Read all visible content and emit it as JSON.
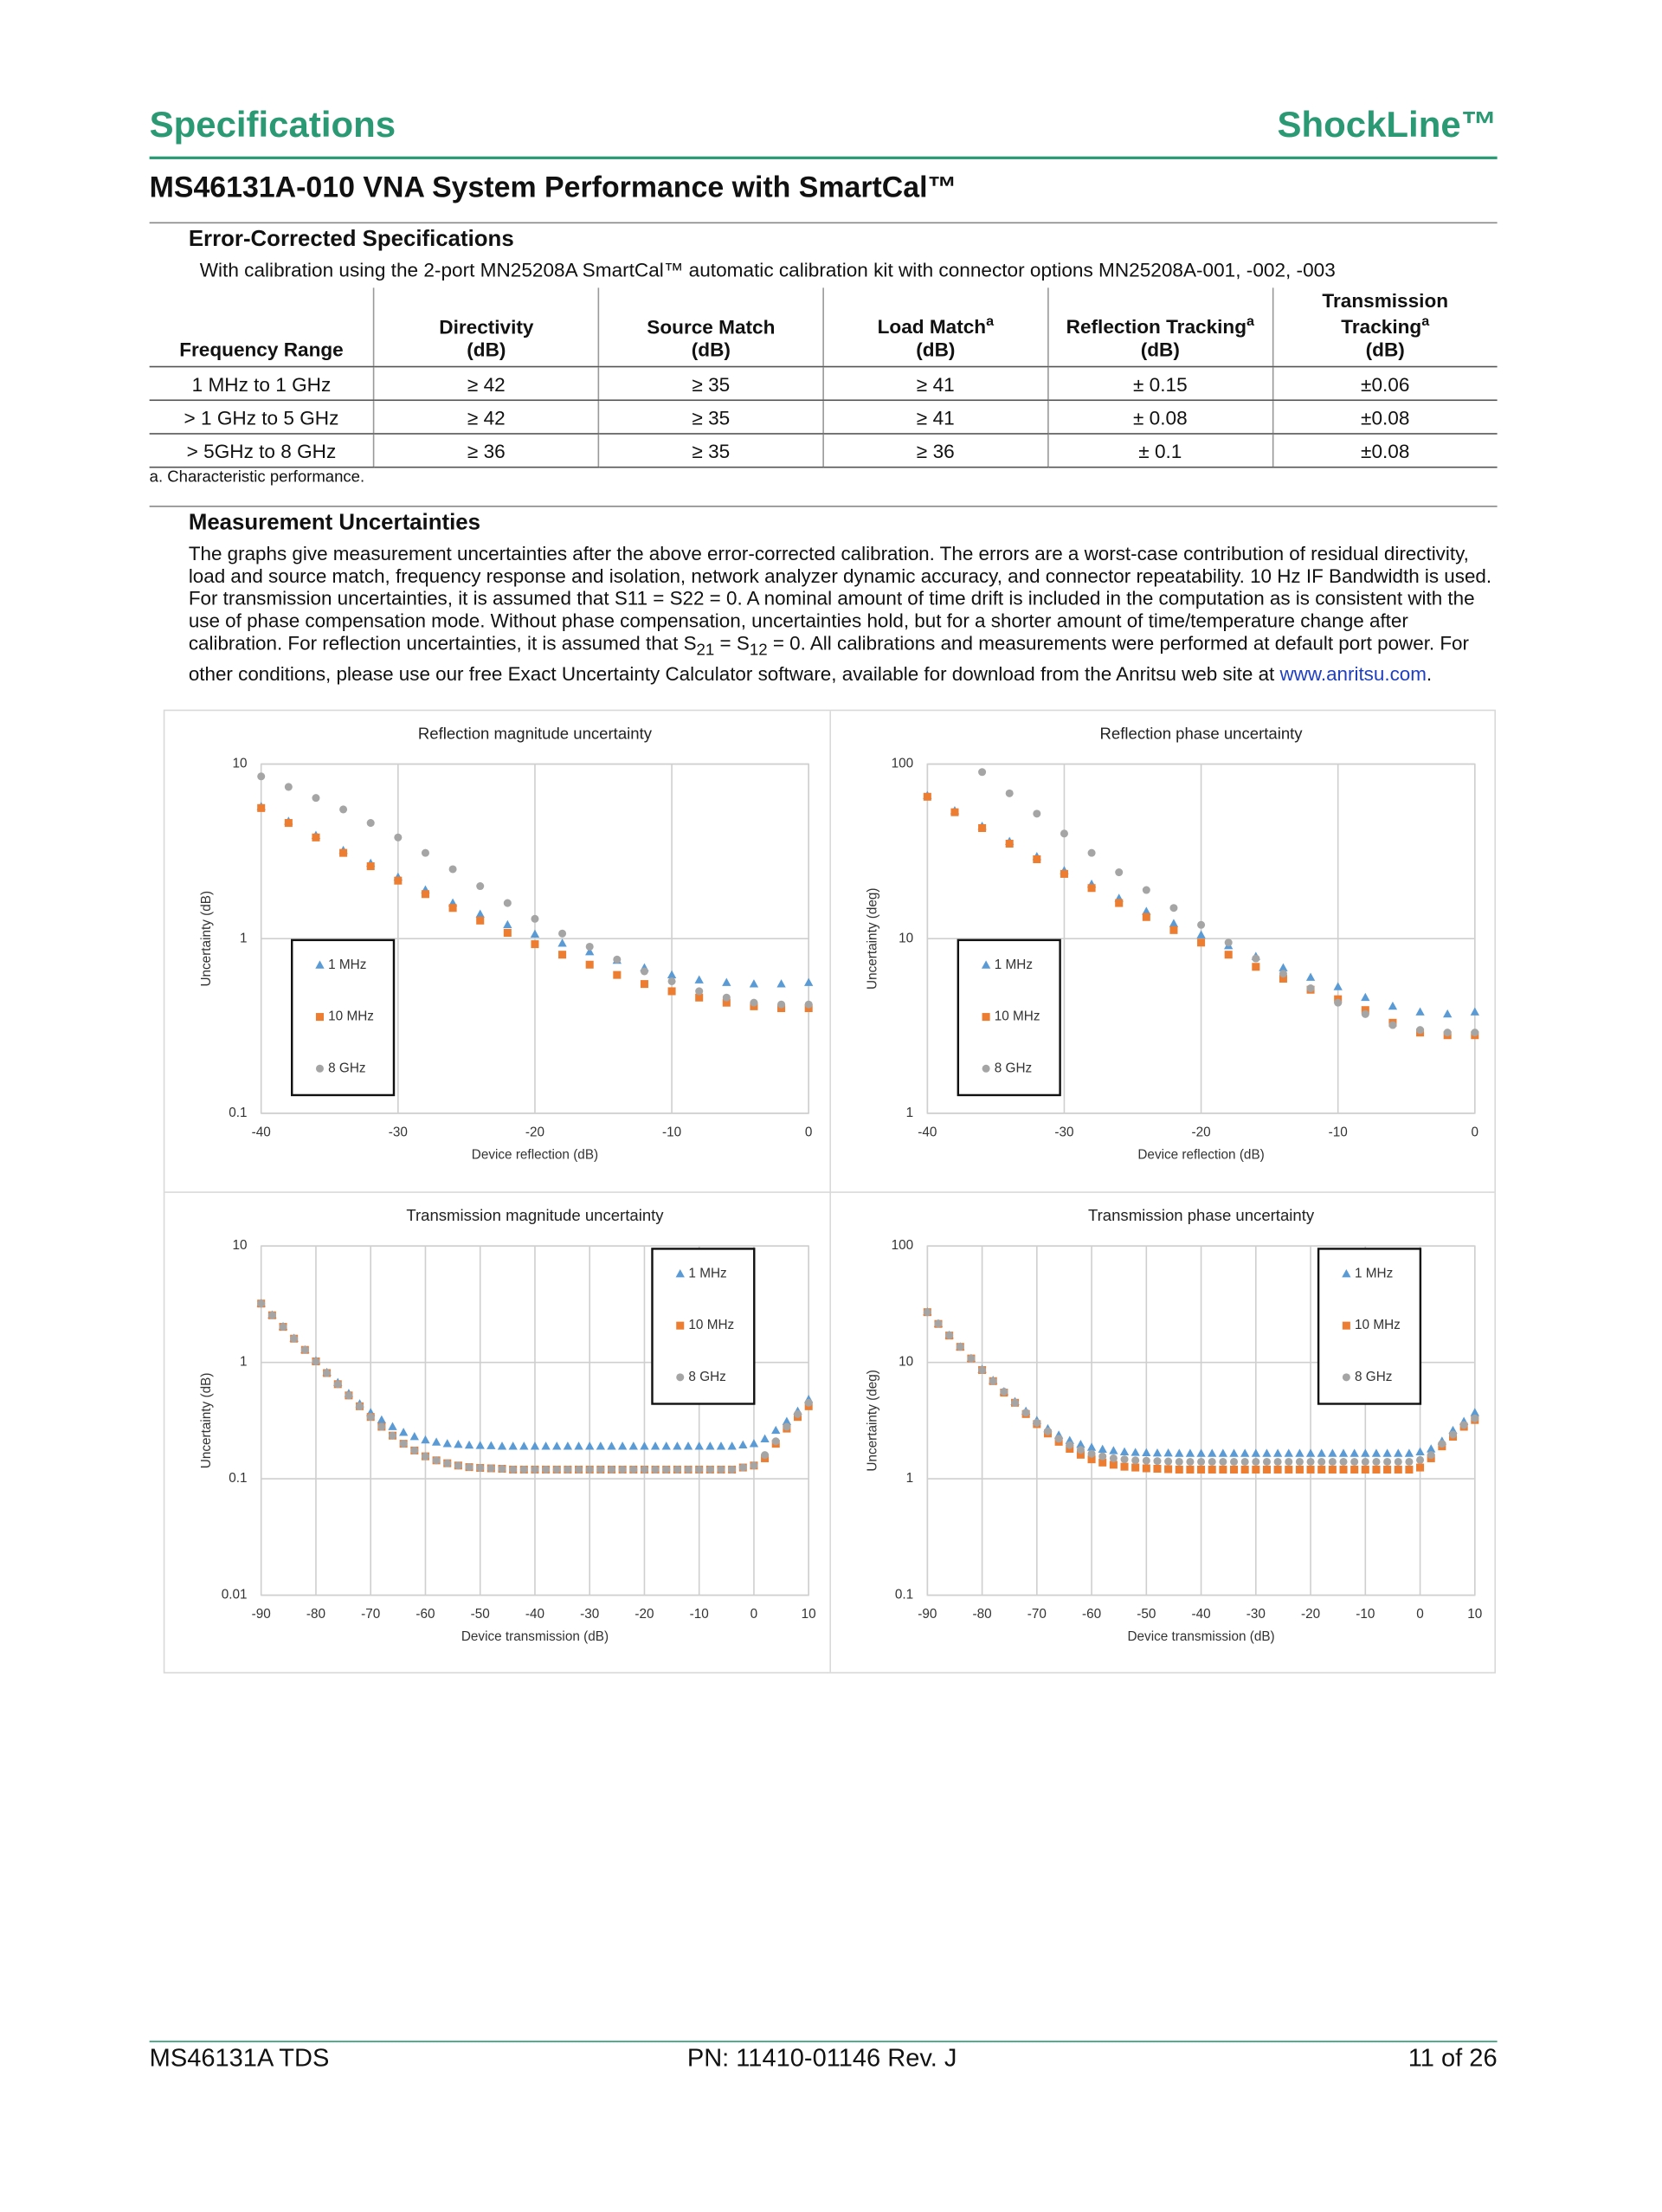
{
  "header": {
    "section": "Specifications",
    "product": "ShockLine™"
  },
  "title": "MS46131A-010 VNA System Performance with SmartCal™",
  "specs": {
    "heading": "Error-Corrected Specifications",
    "caption": "With calibration using the 2-port MN25208A SmartCal™ automatic calibration kit with connector options MN25208A-001, -002, -003",
    "columns": [
      {
        "label": "Frequency Range"
      },
      {
        "label": "Directivity",
        "unit": "(dB)"
      },
      {
        "label": "Source Match",
        "unit": "(dB)"
      },
      {
        "label": "Load Match",
        "note": "a",
        "unit": "(dB)"
      },
      {
        "label": "Reflection Tracking",
        "note": "a",
        "unit": "(dB)"
      },
      {
        "label": "Transmission Tracking",
        "note": "a",
        "unit": "(dB)"
      }
    ],
    "rows": [
      [
        "1 MHz to 1 GHz",
        "≥ 42",
        "≥ 35",
        "≥ 41",
        "± 0.15",
        "±0.06"
      ],
      [
        "> 1 GHz to 5 GHz",
        "≥ 42",
        "≥ 35",
        "≥ 41",
        "± 0.08",
        "±0.08"
      ],
      [
        "> 5GHz to 8 GHz",
        "≥ 36",
        "≥ 35",
        "≥ 36",
        "± 0.1",
        "±0.08"
      ]
    ],
    "footnote": "a.  Characteristic performance."
  },
  "uncertainties": {
    "heading": "Measurement Uncertainties",
    "paragraph": [
      "The graphs give measurement uncertainties after the above error-corrected calibration. The errors are a worst-case contribution of residual directivity, load and source match, frequency response and isolation, network analyzer dynamic accuracy, and connector repeatability. 10 Hz IF Bandwidth is used. For transmission uncertainties, it is assumed that S11 = S22 = 0. A nominal amount of time drift is included in the computation as is consistent with the use of phase compensation mode. Without phase compensation, uncertainties hold, but for a shorter amount of time/temperature change after calibration. For reflection uncertainties, it is assumed that S",
      "21",
      " = S",
      "12",
      " = 0. All calibrations and measurements were performed at default port power. For other conditions, please use our free Exact Uncertainty Calculator software, available for download from the Anritsu web site at ",
      "www.anritsu.com",
      "."
    ]
  },
  "chart_data": [
    {
      "type": "scatter",
      "title": "Reflection magnitude uncertainty",
      "x_label": "Device reflection (dB)",
      "y_label": "Uncertainty (dB)",
      "x": [
        -40,
        -38,
        -36,
        -34,
        -32,
        -30,
        -28,
        -26,
        -24,
        -22,
        -20,
        -18,
        -16,
        -14,
        -12,
        -10,
        -8,
        -6,
        -4,
        -2,
        0
      ],
      "xlim": [
        -40,
        0
      ],
      "xticks": [
        -40,
        -30,
        -20,
        -10,
        0
      ],
      "ylim": [
        0.1,
        10
      ],
      "yticks": [
        0.1,
        1,
        10
      ],
      "log_y": true,
      "grid": true,
      "legend": "lower left",
      "series": [
        {
          "name": "1 MHz",
          "color": "#5b9bd5",
          "marker": "triangle",
          "values": [
            5.7,
            4.7,
            3.9,
            3.2,
            2.7,
            2.25,
            1.9,
            1.6,
            1.38,
            1.2,
            1.06,
            0.94,
            0.84,
            0.75,
            0.68,
            0.62,
            0.58,
            0.56,
            0.55,
            0.55,
            0.56
          ]
        },
        {
          "name": "10 MHz",
          "color": "#ed7d31",
          "marker": "square",
          "values": [
            5.6,
            4.6,
            3.8,
            3.1,
            2.6,
            2.15,
            1.8,
            1.5,
            1.27,
            1.08,
            0.93,
            0.81,
            0.71,
            0.62,
            0.55,
            0.5,
            0.46,
            0.43,
            0.41,
            0.4,
            0.4
          ]
        },
        {
          "name": "8 GHz",
          "color": "#a5a5a5",
          "marker": "circle",
          "values": [
            8.5,
            7.4,
            6.4,
            5.5,
            4.6,
            3.8,
            3.1,
            2.5,
            2.0,
            1.6,
            1.3,
            1.07,
            0.9,
            0.76,
            0.65,
            0.57,
            0.5,
            0.46,
            0.43,
            0.42,
            0.42
          ]
        }
      ]
    },
    {
      "type": "scatter",
      "title": "Reflection phase uncertainty",
      "x_label": "Device reflection (dB)",
      "y_label": "Uncertainty (deg)",
      "x": [
        -40,
        -38,
        -36,
        -34,
        -32,
        -30,
        -28,
        -26,
        -24,
        -22,
        -20,
        -18,
        -16,
        -14,
        -12,
        -10,
        -8,
        -6,
        -4,
        -2,
        0
      ],
      "xlim": [
        -40,
        0
      ],
      "xticks": [
        -40,
        -30,
        -20,
        -10,
        0
      ],
      "ylim": [
        1,
        100
      ],
      "yticks": [
        1,
        10,
        100
      ],
      "log_y": true,
      "grid": true,
      "legend": "lower left",
      "series": [
        {
          "name": "1 MHz",
          "color": "#5b9bd5",
          "marker": "triangle",
          "values": [
            66,
            54,
            44,
            36,
            29.5,
            24.5,
            20.5,
            17,
            14.3,
            12.2,
            10.5,
            9.1,
            7.9,
            6.8,
            6.0,
            5.3,
            4.6,
            4.1,
            3.8,
            3.7,
            3.8
          ]
        },
        {
          "name": "10 MHz",
          "color": "#ed7d31",
          "marker": "square",
          "values": [
            65,
            53,
            43,
            35,
            28.5,
            23.5,
            19.5,
            16,
            13.3,
            11.2,
            9.5,
            8.1,
            6.9,
            5.9,
            5.1,
            4.5,
            3.9,
            3.3,
            2.9,
            2.8,
            2.8
          ]
        },
        {
          "name": "8 GHz",
          "color": "#a5a5a5",
          "marker": "circle",
          "values": [
            null,
            null,
            90,
            68,
            52,
            40,
            31,
            24,
            19,
            15,
            12,
            9.5,
            7.7,
            6.3,
            5.2,
            4.3,
            3.7,
            3.2,
            3.0,
            2.9,
            2.9
          ]
        }
      ]
    },
    {
      "type": "scatter",
      "title": "Transmission magnitude uncertainty",
      "x_label": "Device transmission (dB)",
      "y_label": "Uncertainty (dB)",
      "x": [
        -90,
        -88,
        -86,
        -84,
        -82,
        -80,
        -78,
        -76,
        -74,
        -72,
        -70,
        -68,
        -66,
        -64,
        -62,
        -60,
        -58,
        -56,
        -54,
        -52,
        -50,
        -48,
        -46,
        -44,
        -42,
        -40,
        -38,
        -36,
        -34,
        -32,
        -30,
        -28,
        -26,
        -24,
        -22,
        -20,
        -18,
        -16,
        -14,
        -12,
        -10,
        -8,
        -6,
        -4,
        -2,
        0,
        2,
        4,
        6,
        8,
        10
      ],
      "xlim": [
        -90,
        10
      ],
      "xticks": [
        -90,
        -80,
        -70,
        -60,
        -50,
        -40,
        -30,
        -20,
        -10,
        0,
        10
      ],
      "ylim": [
        0.01,
        10
      ],
      "yticks": [
        0.01,
        0.1,
        1,
        10
      ],
      "log_y": true,
      "grid": true,
      "legend": "upper right",
      "series": [
        {
          "name": "1 MHz",
          "color": "#5b9bd5",
          "marker": "triangle",
          "values": [
            3.21,
            2.55,
            2.03,
            1.61,
            1.28,
            1.03,
            0.82,
            0.67,
            0.54,
            0.44,
            0.37,
            0.32,
            0.28,
            0.25,
            0.23,
            0.215,
            0.206,
            0.2,
            0.197,
            0.194,
            0.193,
            0.192,
            0.19,
            0.19,
            0.19,
            0.19,
            0.19,
            0.19,
            0.19,
            0.19,
            0.19,
            0.19,
            0.19,
            0.19,
            0.19,
            0.19,
            0.19,
            0.19,
            0.19,
            0.19,
            0.19,
            0.19,
            0.19,
            0.19,
            0.195,
            0.2,
            0.22,
            0.26,
            0.31,
            0.38,
            0.48
          ]
        },
        {
          "name": "10 MHz",
          "color": "#ed7d31",
          "marker": "square",
          "values": [
            3.2,
            2.54,
            2.02,
            1.6,
            1.28,
            1.02,
            0.81,
            0.65,
            0.52,
            0.42,
            0.34,
            0.28,
            0.235,
            0.2,
            0.175,
            0.156,
            0.144,
            0.136,
            0.13,
            0.126,
            0.124,
            0.123,
            0.122,
            0.12,
            0.12,
            0.12,
            0.12,
            0.12,
            0.12,
            0.12,
            0.12,
            0.12,
            0.12,
            0.12,
            0.12,
            0.12,
            0.12,
            0.12,
            0.12,
            0.12,
            0.12,
            0.12,
            0.12,
            0.12,
            0.125,
            0.13,
            0.15,
            0.2,
            0.27,
            0.34,
            0.42
          ]
        },
        {
          "name": "8 GHz",
          "color": "#a5a5a5",
          "marker": "circle",
          "values": [
            3.2,
            2.54,
            2.02,
            1.6,
            1.28,
            1.02,
            0.81,
            0.65,
            0.52,
            0.42,
            0.34,
            0.28,
            0.235,
            0.2,
            0.175,
            0.156,
            0.144,
            0.136,
            0.13,
            0.126,
            0.124,
            0.123,
            0.122,
            0.12,
            0.12,
            0.12,
            0.12,
            0.12,
            0.12,
            0.12,
            0.12,
            0.12,
            0.12,
            0.12,
            0.12,
            0.12,
            0.12,
            0.12,
            0.12,
            0.12,
            0.12,
            0.12,
            0.12,
            0.12,
            0.125,
            0.13,
            0.16,
            0.21,
            0.28,
            0.36,
            0.45
          ]
        }
      ]
    },
    {
      "type": "scatter",
      "title": "Transmission phase uncertainty",
      "x_label": "Device transmission (dB)",
      "y_label": "Uncertainty (deg)",
      "x": [
        -90,
        -88,
        -86,
        -84,
        -82,
        -80,
        -78,
        -76,
        -74,
        -72,
        -70,
        -68,
        -66,
        -64,
        -62,
        -60,
        -58,
        -56,
        -54,
        -52,
        -50,
        -48,
        -46,
        -44,
        -42,
        -40,
        -38,
        -36,
        -34,
        -32,
        -30,
        -28,
        -26,
        -24,
        -22,
        -20,
        -18,
        -16,
        -14,
        -12,
        -10,
        -8,
        -6,
        -4,
        -2,
        0,
        2,
        4,
        6,
        8,
        10
      ],
      "xlim": [
        -90,
        10
      ],
      "xticks": [
        -90,
        -80,
        -70,
        -60,
        -50,
        -40,
        -30,
        -20,
        -10,
        0,
        10
      ],
      "ylim": [
        0.1,
        100
      ],
      "yticks": [
        0.1,
        1,
        10,
        100
      ],
      "log_y": true,
      "grid": true,
      "legend": "upper right",
      "series": [
        {
          "name": "1 MHz",
          "color": "#5b9bd5",
          "marker": "triangle",
          "values": [
            27.1,
            21.5,
            17.1,
            13.6,
            10.8,
            8.7,
            7,
            5.6,
            4.6,
            3.8,
            3.16,
            2.69,
            2.37,
            2.13,
            1.97,
            1.86,
            1.79,
            1.74,
            1.7,
            1.68,
            1.67,
            1.66,
            1.66,
            1.65,
            1.65,
            1.65,
            1.65,
            1.65,
            1.65,
            1.65,
            1.65,
            1.65,
            1.65,
            1.65,
            1.65,
            1.65,
            1.65,
            1.65,
            1.65,
            1.65,
            1.65,
            1.65,
            1.65,
            1.65,
            1.65,
            1.7,
            1.8,
            2.1,
            2.6,
            3.1,
            3.7
          ]
        },
        {
          "name": "10 MHz",
          "color": "#ed7d31",
          "marker": "square",
          "values": [
            27,
            21.4,
            17,
            13.6,
            10.8,
            8.6,
            6.9,
            5.5,
            4.5,
            3.6,
            2.95,
            2.45,
            2.08,
            1.81,
            1.61,
            1.47,
            1.38,
            1.32,
            1.27,
            1.25,
            1.23,
            1.22,
            1.21,
            1.2,
            1.2,
            1.2,
            1.2,
            1.2,
            1.2,
            1.2,
            1.2,
            1.2,
            1.2,
            1.2,
            1.2,
            1.2,
            1.2,
            1.2,
            1.2,
            1.2,
            1.2,
            1.2,
            1.2,
            1.2,
            1.2,
            1.25,
            1.5,
            1.9,
            2.3,
            2.8,
            3.2
          ]
        },
        {
          "name": "8 GHz",
          "color": "#a5a5a5",
          "marker": "circle",
          "values": [
            27,
            21.5,
            17.1,
            13.6,
            10.8,
            8.6,
            6.9,
            5.6,
            4.5,
            3.7,
            3.03,
            2.56,
            2.21,
            1.95,
            1.77,
            1.64,
            1.56,
            1.5,
            1.47,
            1.44,
            1.43,
            1.42,
            1.41,
            1.4,
            1.4,
            1.4,
            1.4,
            1.4,
            1.4,
            1.4,
            1.4,
            1.4,
            1.4,
            1.4,
            1.4,
            1.4,
            1.4,
            1.4,
            1.4,
            1.4,
            1.4,
            1.4,
            1.4,
            1.4,
            1.4,
            1.45,
            1.6,
            2.0,
            2.4,
            2.9,
            3.3
          ]
        }
      ]
    }
  ],
  "footer": {
    "left": "MS46131A TDS",
    "center": "PN: 11410-01146  Rev. J",
    "right": "11 of 26"
  }
}
